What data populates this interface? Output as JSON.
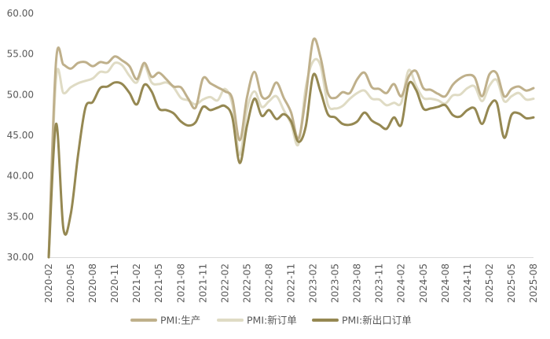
{
  "chart_data": {
    "type": "line",
    "title": "",
    "xlabel": "",
    "ylabel": "",
    "ylim": [
      30,
      60
    ],
    "yticks": [
      "30.00",
      "35.00",
      "40.00",
      "45.00",
      "50.00",
      "55.00",
      "60.00"
    ],
    "xtick_labels": [
      "2020-02",
      "2020-05",
      "2020-08",
      "2020-11",
      "2021-02",
      "2021-05",
      "2021-08",
      "2021-11",
      "2022-02",
      "2022-05",
      "2022-08",
      "2022-11",
      "2023-02",
      "2023-05",
      "2023-08",
      "2023-11",
      "2024-02",
      "2024-05",
      "2024-08",
      "2024-11",
      "2025-02",
      "2025-05",
      "2025-08"
    ],
    "grid": "none",
    "legend_position": "bottom",
    "x": [
      "2020-02",
      "2020-03",
      "2020-04",
      "2020-05",
      "2020-06",
      "2020-07",
      "2020-08",
      "2020-09",
      "2020-10",
      "2020-11",
      "2020-12",
      "2021-01",
      "2021-02",
      "2021-03",
      "2021-04",
      "2021-05",
      "2021-06",
      "2021-07",
      "2021-08",
      "2021-09",
      "2021-10",
      "2021-11",
      "2021-12",
      "2022-01",
      "2022-02",
      "2022-03",
      "2022-04",
      "2022-05",
      "2022-06",
      "2022-07",
      "2022-08",
      "2022-09",
      "2022-10",
      "2022-11",
      "2022-12",
      "2023-01",
      "2023-02",
      "2023-03",
      "2023-04",
      "2023-05",
      "2023-06",
      "2023-07",
      "2023-08",
      "2023-09",
      "2023-10",
      "2023-11",
      "2023-12",
      "2024-01",
      "2024-02",
      "2024-03",
      "2024-04",
      "2024-05",
      "2024-06",
      "2024-07",
      "2024-08",
      "2024-09",
      "2024-10",
      "2024-11",
      "2024-12",
      "2025-01",
      "2025-02",
      "2025-03",
      "2025-04",
      "2025-05",
      "2025-06",
      "2025-07",
      "2025-08"
    ],
    "series": [
      {
        "name": "PMI:生产",
        "color": "#BFB08B",
        "values": [
          27.8,
          54.1,
          53.7,
          53.2,
          53.9,
          54.0,
          53.5,
          54.0,
          53.9,
          54.7,
          54.2,
          53.5,
          51.9,
          53.9,
          52.2,
          52.7,
          51.9,
          51.0,
          50.9,
          49.5,
          48.4,
          52.0,
          51.4,
          50.9,
          50.4,
          49.5,
          44.4,
          49.7,
          52.8,
          49.8,
          49.8,
          51.5,
          49.6,
          47.8,
          44.6,
          49.8,
          56.7,
          54.6,
          50.2,
          49.6,
          50.3,
          50.2,
          51.9,
          52.7,
          50.9,
          50.7,
          50.2,
          51.3,
          49.8,
          52.2,
          52.9,
          50.8,
          50.6,
          50.1,
          49.8,
          51.2,
          52.0,
          52.4,
          52.1,
          49.8,
          52.5,
          52.6,
          49.8,
          50.7,
          51.0,
          50.5,
          50.8
        ]
      },
      {
        "name": "PMI:新订单",
        "color": "#DFDBC4",
        "values": [
          29.3,
          52.0,
          50.2,
          50.9,
          51.4,
          51.7,
          52.0,
          52.8,
          52.8,
          53.9,
          53.6,
          52.3,
          51.5,
          53.6,
          51.5,
          51.3,
          51.5,
          50.9,
          49.6,
          49.3,
          48.8,
          49.4,
          49.7,
          49.3,
          50.7,
          48.8,
          42.6,
          48.2,
          50.4,
          48.5,
          49.2,
          49.8,
          48.1,
          46.4,
          43.9,
          50.9,
          54.1,
          53.6,
          48.8,
          48.3,
          48.6,
          49.5,
          50.2,
          50.5,
          49.5,
          49.4,
          48.7,
          49.0,
          49.0,
          53.0,
          51.1,
          49.6,
          49.5,
          49.3,
          48.9,
          49.9,
          50.0,
          50.8,
          51.0,
          49.2,
          51.1,
          51.8,
          49.2,
          49.8,
          50.2,
          49.4,
          49.5
        ]
      },
      {
        "name": "PMI:新出口订单",
        "color": "#958852",
        "values": [
          28.7,
          46.4,
          33.5,
          35.3,
          42.6,
          48.4,
          49.1,
          50.8,
          51.0,
          51.5,
          51.3,
          50.2,
          48.8,
          51.2,
          50.4,
          48.3,
          48.1,
          47.7,
          46.7,
          46.2,
          46.6,
          48.5,
          48.1,
          48.4,
          48.6,
          47.2,
          41.6,
          46.2,
          49.5,
          47.4,
          48.1,
          47.0,
          47.6,
          46.7,
          44.2,
          46.1,
          52.4,
          50.4,
          47.6,
          47.2,
          46.4,
          46.3,
          46.7,
          47.8,
          46.8,
          46.3,
          45.8,
          47.2,
          46.3,
          51.3,
          50.6,
          48.3,
          48.3,
          48.5,
          48.7,
          47.5,
          47.3,
          48.1,
          48.3,
          46.4,
          48.6,
          49.0,
          44.7,
          47.5,
          47.7,
          47.1,
          47.2
        ]
      }
    ]
  }
}
